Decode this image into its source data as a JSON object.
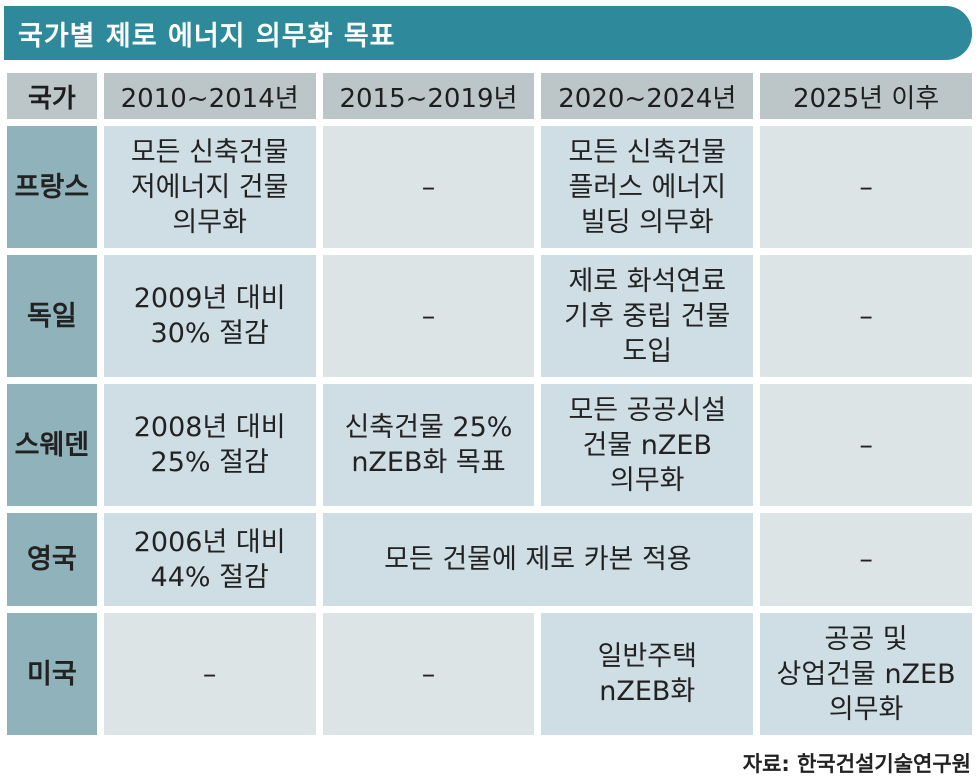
{
  "title": "국가별 제로 에너지 의무화 목표",
  "header": [
    "국가",
    "2010~2014년",
    "2015~2019년",
    "2020~2024년",
    "2025년 이후"
  ],
  "rows": {
    "france": {
      "country": "프랑스",
      "c1": [
        "모든 신축건물",
        "저에너지 건물",
        "의무화"
      ],
      "c2": "–",
      "c3": [
        "모든 신축건물",
        "플러스 에너지",
        "빌딩 의무화"
      ],
      "c4": "–"
    },
    "germany": {
      "country": "독일",
      "c1": [
        "2009년 대비",
        "30% 절감"
      ],
      "c2": "–",
      "c3": [
        "제로 화석연료",
        "기후 중립 건물",
        "도입"
      ],
      "c4": "–"
    },
    "sweden": {
      "country": "스웨덴",
      "c1": [
        "2008년 대비",
        "25% 절감"
      ],
      "c2": [
        "신축건물 25%",
        "nZEB화 목표"
      ],
      "c3": [
        "모든 공공시설",
        "건물 nZEB",
        "의무화"
      ],
      "c4": "–"
    },
    "uk": {
      "country": "영국",
      "c1": [
        "2006년 대비",
        "44% 절감"
      ],
      "c23": "모든 건물에 제로 카본 적용",
      "c4": "–"
    },
    "usa": {
      "country": "미국",
      "c1": "–",
      "c2": "–",
      "c3": [
        "일반주택",
        "nZEB화"
      ],
      "c4": [
        "공공 및",
        "상업건물 nZEB",
        "의무화"
      ]
    }
  },
  "source": "자료: 한국건설기술연구원",
  "colors": {
    "title_bg": "#2e8a9a",
    "header_bg": "#bcc5c8",
    "row_head_bg": "#8fb2bb",
    "cell_bg": "#dde4e6",
    "cell_highlight_bg": "#cfdde4"
  }
}
